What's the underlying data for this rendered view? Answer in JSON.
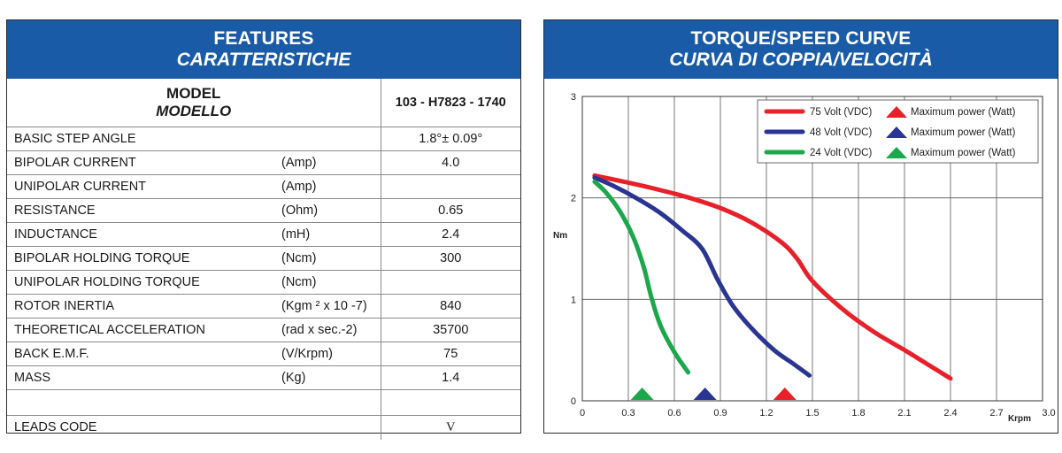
{
  "features": {
    "title": "FEATURES",
    "subtitle": "CARATTERISTICHE",
    "model_label": "MODEL",
    "model_label_it": "MODELLO",
    "model_value": "103 - H7823 - 1740",
    "rows": [
      {
        "label": "BASIC STEP ANGLE",
        "unit": "",
        "value": "1.8°± 0.09°"
      },
      {
        "label": "BIPOLAR CURRENT",
        "unit": "(Amp)",
        "value": "4.0"
      },
      {
        "label": "UNIPOLAR CURRENT",
        "unit": "(Amp)",
        "value": ""
      },
      {
        "label": "RESISTANCE",
        "unit": "(Ohm)",
        "value": "0.65"
      },
      {
        "label": "INDUCTANCE",
        "unit": "(mH)",
        "value": "2.4"
      },
      {
        "label": "BIPOLAR HOLDING TORQUE",
        "unit": "(Ncm)",
        "value": "300"
      },
      {
        "label": "UNIPOLAR HOLDING TORQUE",
        "unit": "(Ncm)",
        "value": ""
      },
      {
        "label": "ROTOR INERTIA",
        "unit": "(Kgm ² x 10 -7)",
        "value": "840"
      },
      {
        "label": "THEORETICAL ACCELERATION",
        "unit": "(rad x sec.-2)",
        "value": "35700"
      },
      {
        "label": "BACK E.M.F.",
        "unit": "(V/Krpm)",
        "value": "75"
      },
      {
        "label": "MASS",
        "unit": "(Kg)",
        "value": "1.4"
      },
      {
        "label": "",
        "unit": "",
        "value": ""
      },
      {
        "label": "LEADS CODE",
        "unit": "",
        "value": "V"
      }
    ]
  },
  "chart_data": {
    "type": "line",
    "title": "TORQUE/SPEED CURVE",
    "subtitle": "CURVA DI COPPIA/VELOCITÀ",
    "xlabel": "Krpm",
    "ylabel": "Nm",
    "xlim": [
      0,
      3.0
    ],
    "ylim": [
      0,
      3
    ],
    "x_ticks": [
      "0",
      "0.3",
      "0.6",
      "0.9",
      "1.2",
      "1.5",
      "1.8",
      "2.1",
      "2.4",
      "2.7",
      "3.0"
    ],
    "y_ticks": [
      "0",
      "1",
      "2",
      "3"
    ],
    "grid": true,
    "legend_position": "top-right",
    "series": [
      {
        "name": "75 Volt (VDC)",
        "color": "#e8202a",
        "points": [
          [
            0.08,
            2.22
          ],
          [
            0.3,
            2.15
          ],
          [
            0.5,
            2.08
          ],
          [
            0.7,
            2.0
          ],
          [
            0.9,
            1.9
          ],
          [
            1.1,
            1.76
          ],
          [
            1.3,
            1.56
          ],
          [
            1.4,
            1.4
          ],
          [
            1.5,
            1.18
          ],
          [
            1.7,
            0.9
          ],
          [
            1.9,
            0.68
          ],
          [
            2.1,
            0.5
          ],
          [
            2.25,
            0.36
          ],
          [
            2.4,
            0.22
          ]
        ],
        "max_power_x": 1.32
      },
      {
        "name": "48 Volt (VDC)",
        "color": "#2a3593",
        "points": [
          [
            0.08,
            2.2
          ],
          [
            0.2,
            2.12
          ],
          [
            0.35,
            2.0
          ],
          [
            0.5,
            1.86
          ],
          [
            0.65,
            1.68
          ],
          [
            0.78,
            1.5
          ],
          [
            0.88,
            1.2
          ],
          [
            0.98,
            0.94
          ],
          [
            1.1,
            0.72
          ],
          [
            1.25,
            0.5
          ],
          [
            1.38,
            0.36
          ],
          [
            1.48,
            0.25
          ]
        ],
        "max_power_x": 0.8
      },
      {
        "name": "24 Volt (VDC)",
        "color": "#1aa84b",
        "points": [
          [
            0.08,
            2.16
          ],
          [
            0.15,
            2.06
          ],
          [
            0.24,
            1.88
          ],
          [
            0.33,
            1.62
          ],
          [
            0.4,
            1.32
          ],
          [
            0.45,
            1.02
          ],
          [
            0.51,
            0.74
          ],
          [
            0.6,
            0.48
          ],
          [
            0.69,
            0.28
          ]
        ],
        "max_power_x": 0.39
      }
    ],
    "legend_marker_label": "Maximum power (Watt)"
  }
}
